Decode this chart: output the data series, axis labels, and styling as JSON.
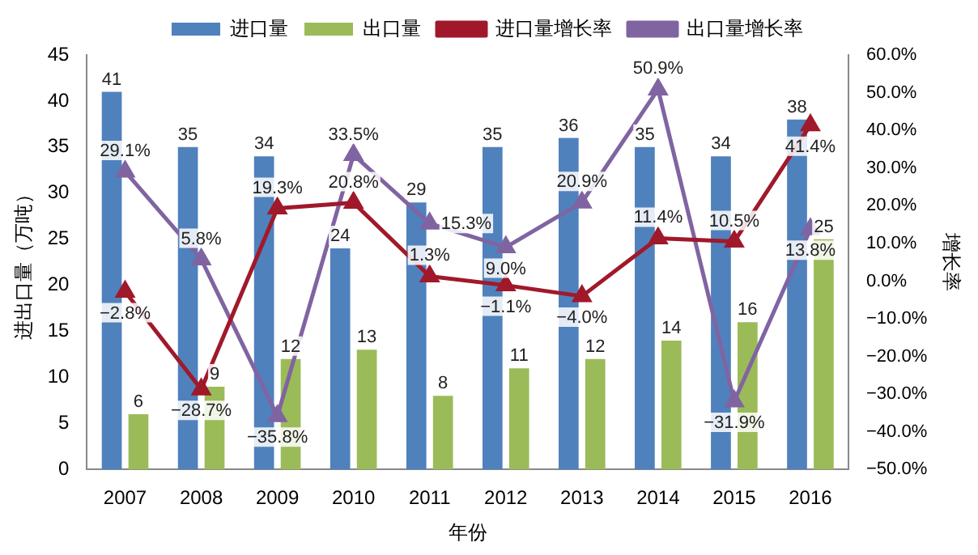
{
  "chart_data": {
    "type": "bar",
    "categories": [
      "2007",
      "2008",
      "2009",
      "2010",
      "2011",
      "2012",
      "2013",
      "2014",
      "2015",
      "2016"
    ],
    "xlabel": "年份",
    "ylabel": "进出口量（万吨）",
    "y2label": "增长率",
    "ylim": [
      0,
      45
    ],
    "yticks": [
      0,
      5,
      10,
      15,
      20,
      25,
      30,
      35,
      40,
      45
    ],
    "y2lim": [
      -50,
      60
    ],
    "y2ticks": [
      {
        "value": 60,
        "label": "60.0%"
      },
      {
        "value": 50,
        "label": "50.0%"
      },
      {
        "value": 40,
        "label": "40.0%"
      },
      {
        "value": 30,
        "label": "30.0%"
      },
      {
        "value": 20,
        "label": "20.0%"
      },
      {
        "value": 10,
        "label": "10.0%"
      },
      {
        "value": 0,
        "label": "0.0%"
      },
      {
        "value": -10,
        "label": "−10.0%"
      },
      {
        "value": -20,
        "label": "−20.0%"
      },
      {
        "value": -30,
        "label": "−30.0%"
      },
      {
        "value": -40,
        "label": "−40.0%"
      },
      {
        "value": -50,
        "label": "−50.0%"
      }
    ],
    "legend": "top",
    "grid": false,
    "marker": "triangle",
    "series": [
      {
        "name": "进口量",
        "color": "#4f81bd",
        "values": [
          41,
          35,
          34,
          24,
          29,
          35,
          36,
          35,
          34,
          38
        ],
        "value_labels": [
          "41",
          "35",
          "34",
          "24",
          "29",
          "35",
          "36",
          "35",
          "34",
          "38"
        ]
      },
      {
        "name": "出口量",
        "color": "#9bbb59",
        "values": [
          6,
          9,
          12,
          13,
          8,
          11,
          12,
          14,
          16,
          25
        ],
        "value_labels": [
          "6",
          "9",
          "12",
          "13",
          "8",
          "11",
          "12",
          "14",
          "16",
          "25"
        ]
      },
      {
        "name": "进口量增长率",
        "type": "line",
        "axis": "y2",
        "color": "#a0192a",
        "values": [
          -2.8,
          -28.7,
          19.3,
          20.8,
          1.3,
          -1.1,
          -4.0,
          11.4,
          10.5,
          41.4
        ],
        "value_labels": [
          "−2.8%",
          "−28.7%",
          "19.3%",
          "20.8%",
          "1.3%",
          "−1.1%",
          "−4.0%",
          "11.4%",
          "10.5%",
          "41.4%"
        ]
      },
      {
        "name": "出口量增长率",
        "type": "line",
        "axis": "y2",
        "color": "#8064a2",
        "values": [
          29.1,
          5.8,
          -35.8,
          33.5,
          15.3,
          9.0,
          20.9,
          50.9,
          -31.9,
          13.8
        ],
        "value_labels": [
          "29.1%",
          "5.8%",
          "−35.8%",
          "33.5%",
          "15.3%",
          "9.0%",
          "20.9%",
          "50.9%",
          "−31.9%",
          "13.8%"
        ]
      }
    ]
  }
}
